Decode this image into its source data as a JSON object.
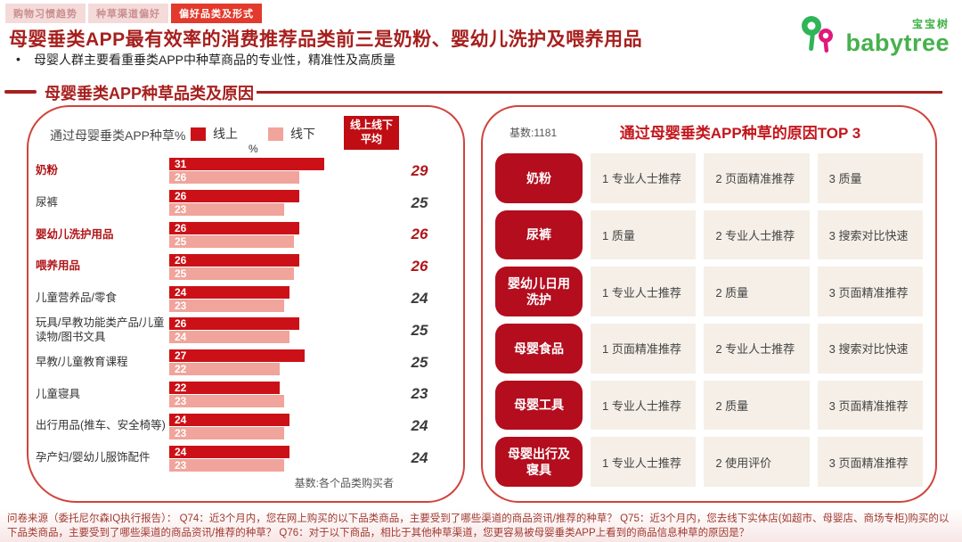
{
  "tabs": [
    {
      "label": "购物习惯趋势",
      "active": false
    },
    {
      "label": "种草渠道偏好",
      "active": false
    },
    {
      "label": "偏好品类及形式",
      "active": true
    }
  ],
  "logo": {
    "cn": "宝宝树",
    "en": "babytree",
    "green": "#45B14C",
    "magenta": "#E0197D"
  },
  "header": {
    "title": "母婴垂类APP最有效率的消费推荐品类前三是奶粉、婴幼儿洗护及喂养用品",
    "bullet_dot": "•",
    "bullet": "母婴人群主要看重垂类APP中种草商品的专业性，精准性及高质量"
  },
  "section_title": "母婴垂类APP种草品类及原因",
  "chart_data": {
    "type": "bar",
    "title": "通过母婴垂类APP种草%",
    "unit_label": "%",
    "legend": [
      {
        "name": "线上",
        "color": "#CB1117"
      },
      {
        "name": "线下",
        "color": "#F0A49B"
      }
    ],
    "avg_header": "线上线下\n平均",
    "categories": [
      "奶粉",
      "尿裤",
      "婴幼儿洗护用品",
      "喂养用品",
      "儿童营养品/零食",
      "玩具/早教功能类产品/儿童读物/图书文具",
      "早教/儿童教育课程",
      "儿童寝具",
      "出行用品(推车、安全椅等)",
      "孕产妇/婴幼儿服饰配件"
    ],
    "series": [
      {
        "name": "线上",
        "values": [
          31,
          26,
          26,
          26,
          24,
          26,
          27,
          22,
          24,
          24
        ]
      },
      {
        "name": "线下",
        "values": [
          26,
          23,
          25,
          25,
          23,
          24,
          22,
          23,
          23,
          23
        ]
      }
    ],
    "averages": [
      29,
      25,
      26,
      26,
      24,
      25,
      25,
      23,
      24,
      24
    ],
    "emphasized_rows": [
      0,
      2,
      3
    ],
    "xlim": [
      0,
      31
    ],
    "base_note": "基数:各个品类购买者"
  },
  "reasons_panel": {
    "base_note": "基数:1181",
    "title": "通过母婴垂类APP种草的原因TOP 3",
    "rows": [
      {
        "label": "奶粉",
        "reasons": [
          "专业人士推荐",
          "页面精准推荐",
          "质量"
        ]
      },
      {
        "label": "尿裤",
        "reasons": [
          "质量",
          "专业人士推荐",
          "搜索对比快速"
        ]
      },
      {
        "label": "婴幼儿日用\n洗护",
        "reasons": [
          "专业人士推荐",
          "质量",
          "页面精准推荐"
        ]
      },
      {
        "label": "母婴食品",
        "reasons": [
          "页面精准推荐",
          "专业人士推荐",
          "搜索对比快速"
        ]
      },
      {
        "label": "母婴工具",
        "reasons": [
          "专业人士推荐",
          "质量",
          "页面精准推荐"
        ]
      },
      {
        "label": "母婴出行及\n寝具",
        "reasons": [
          "专业人士推荐",
          "使用评价",
          "页面精准推荐"
        ]
      }
    ]
  },
  "footer": {
    "source_text": "问卷来源（委托尼尔森IQ执行报告）： Q74：近3个月内，您在网上购买的以下品类商品，主要受到了哪些渠道的商品资讯/推荐的种草？ Q75：近3个月内，您去线下实体店(如超市、母婴店、商场专柜)购买的以下品类商品，主要受到了哪些渠道的商品资讯/推荐的种草？ Q76：对于以下商品，相比于其他种草渠道，您更容易被母婴垂类APP上看到的商品信息种草的原因是？"
  },
  "colors": {
    "accent_dark_red": "#A6201E",
    "bar_online": "#CB1117",
    "bar_offline": "#F0A49B",
    "pill_red": "#B30D1E",
    "cell_beige": "#F5EFE7",
    "tab_active": "#E23A2C",
    "brand_green": "#45B14C"
  }
}
